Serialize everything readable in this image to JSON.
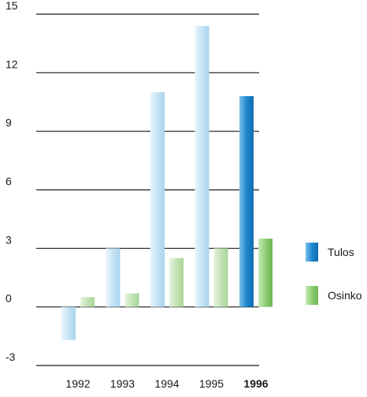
{
  "chart_data": {
    "type": "bar",
    "categories": [
      "1992",
      "1993",
      "1994",
      "1995",
      "1996"
    ],
    "highlight_category": "1996",
    "series": [
      {
        "name": "Tulos",
        "values": [
          -1.7,
          3.0,
          11.0,
          14.4,
          10.8
        ]
      },
      {
        "name": "Osinko",
        "values": [
          0.5,
          0.7,
          2.5,
          3.0,
          3.5
        ]
      }
    ],
    "yticks": [
      -3,
      0,
      3,
      6,
      9,
      12,
      15
    ],
    "ylim": [
      -3,
      15
    ],
    "grid": true,
    "legend_position": "right",
    "colors": {
      "tulos_light": "#c6e4f6",
      "tulos_highlight": "#1f88cf",
      "osinko_light": "#c4e3b8",
      "osinko_highlight": "#8fce75",
      "gridline": "#1a1a1a"
    }
  }
}
